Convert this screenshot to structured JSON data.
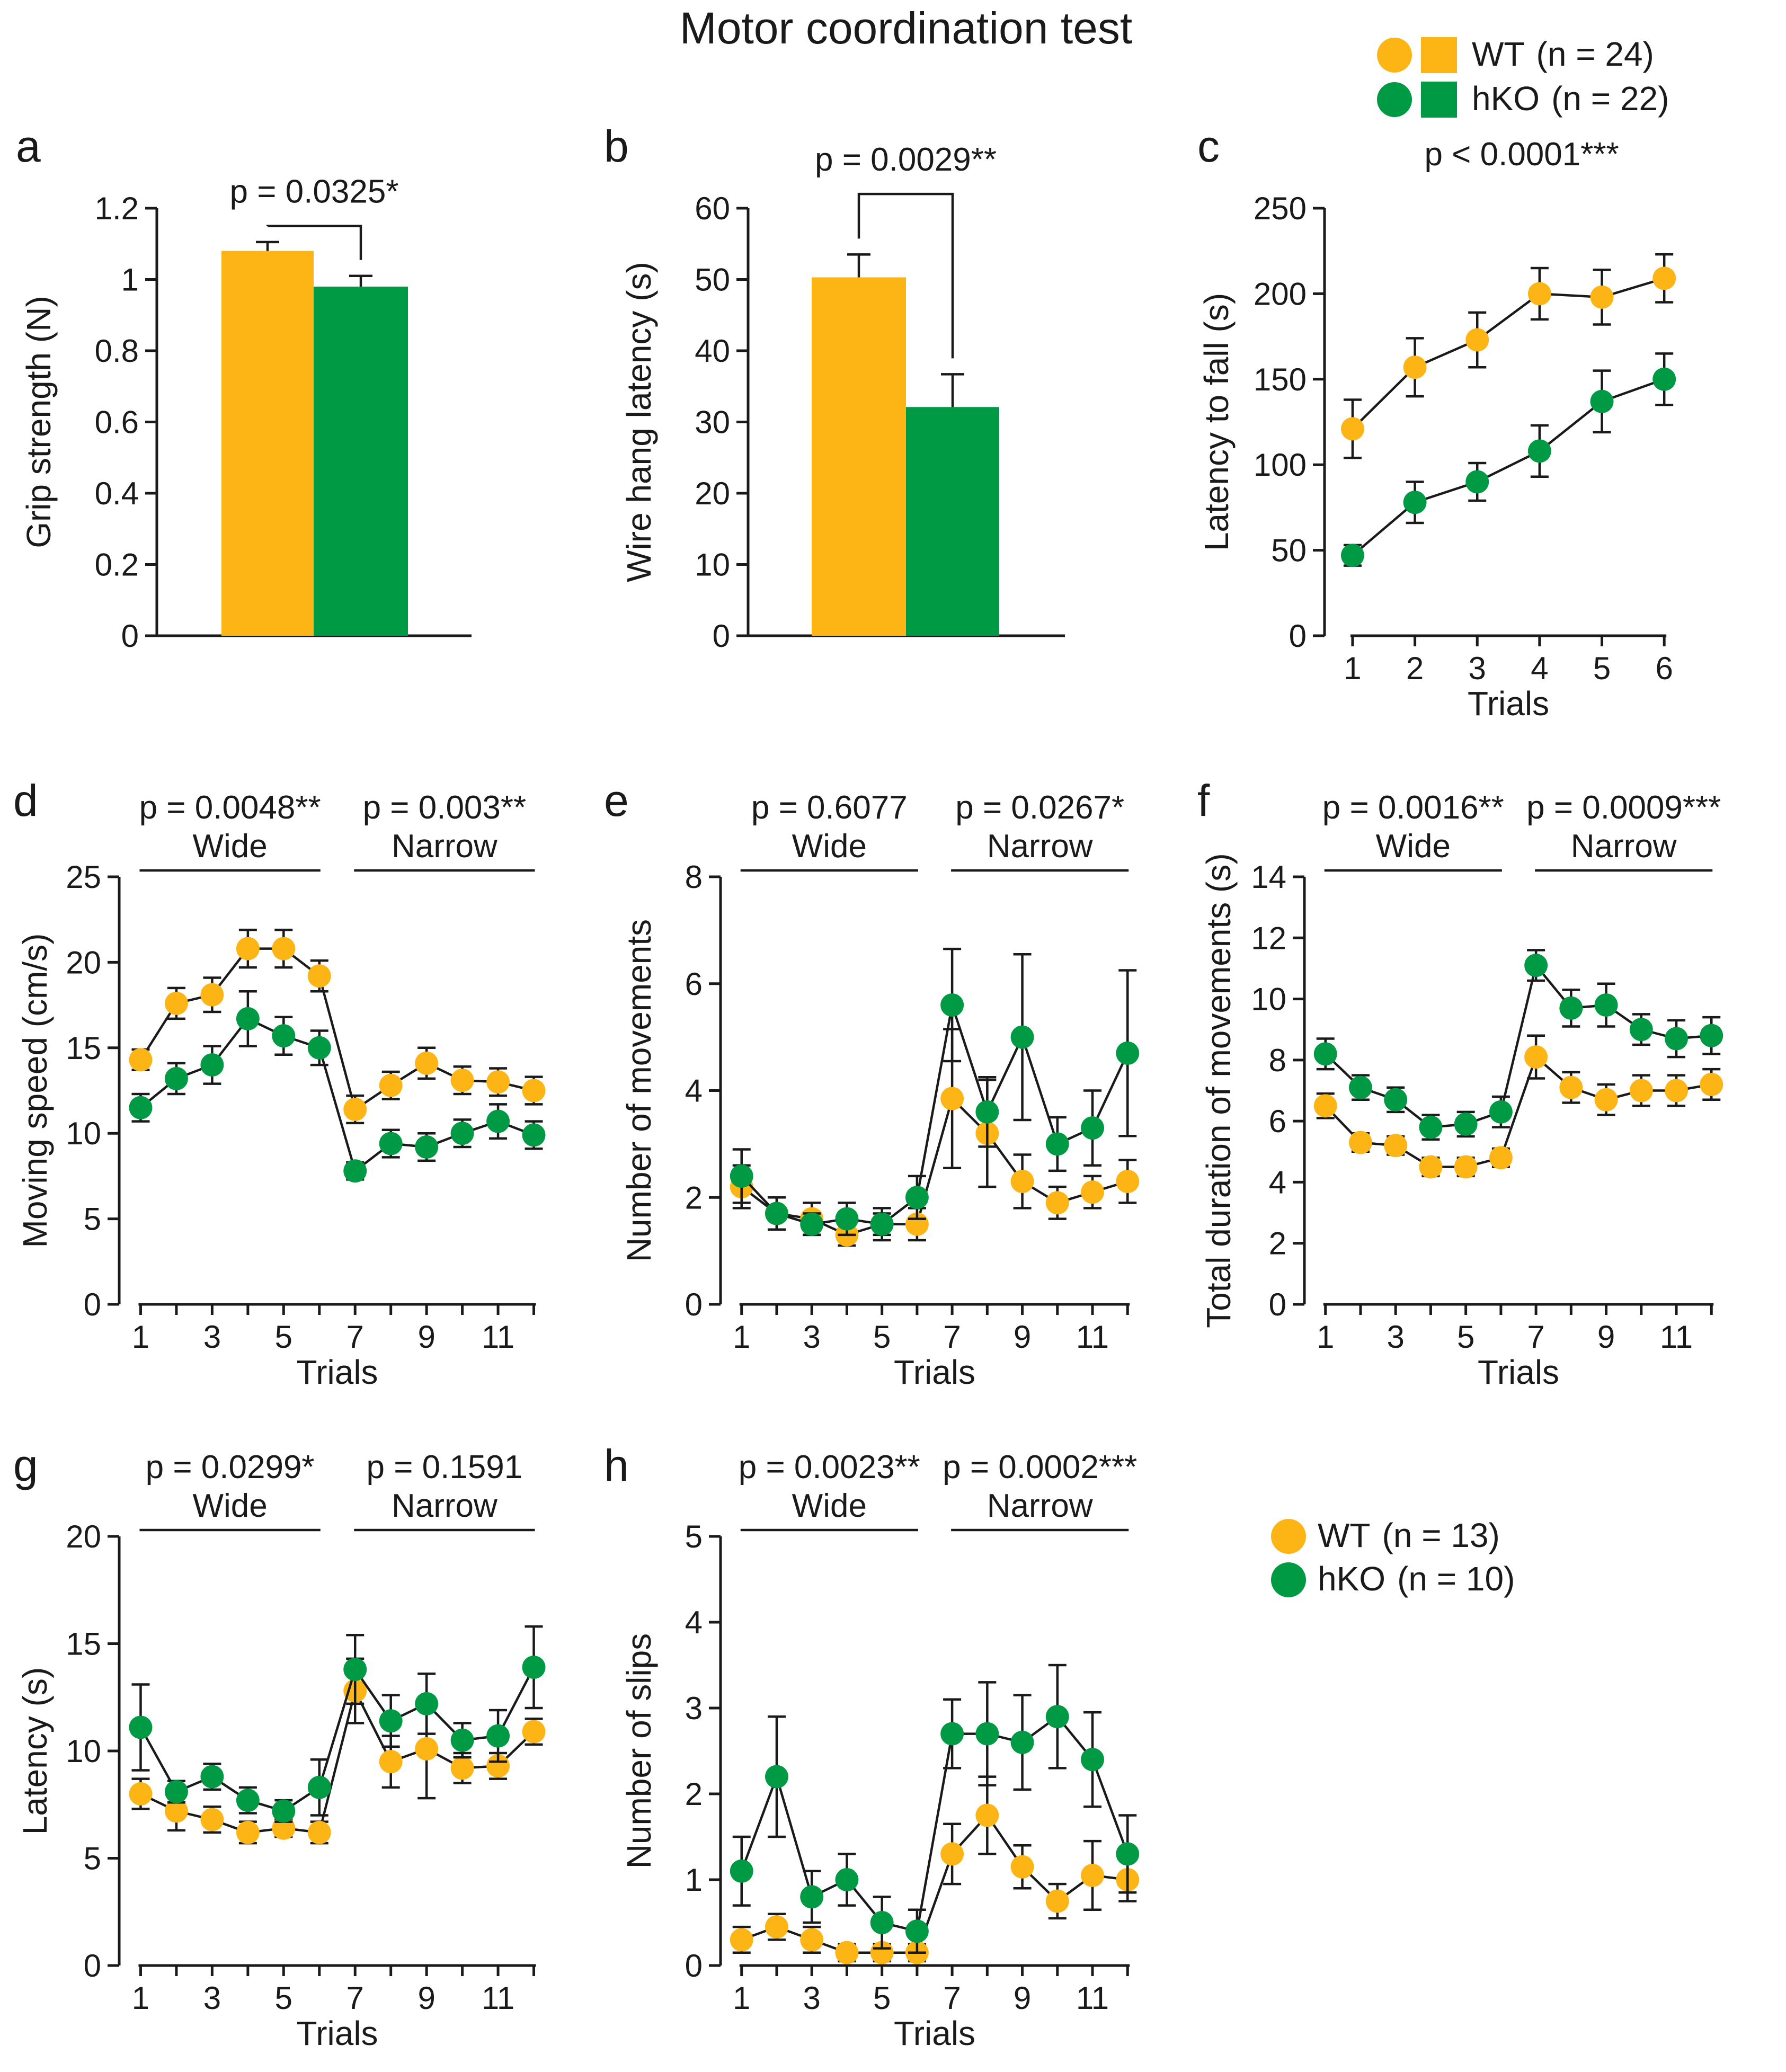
{
  "title": "Motor coordination test",
  "colors": {
    "wt": "#FDB515",
    "hko": "#009A44",
    "ink": "#1a1a1a"
  },
  "legend_top": [
    {
      "series": "wt",
      "label": "WT",
      "n_text": "(n = 24)"
    },
    {
      "series": "hko",
      "label": "hKO",
      "n_text": "(n = 22)"
    }
  ],
  "legend_bottom": [
    {
      "series": "wt",
      "label": "WT",
      "n_text": "(n = 13)"
    },
    {
      "series": "hko",
      "label": "hKO",
      "n_text": "(n = 10)"
    }
  ],
  "chart_data": [
    {
      "id": "a",
      "letter": "a",
      "type": "bar",
      "ylabel": "Grip strength (N)",
      "xlabel": "",
      "ylim": [
        0,
        1.2
      ],
      "yticks": [
        0,
        0.2,
        0.4,
        0.6,
        0.8,
        1,
        1.2
      ],
      "ytick_labels": [
        "0",
        "0.2",
        "0.4",
        "0.6",
        "0.8",
        "1",
        "1.2"
      ],
      "bars": [
        {
          "series": "wt",
          "value": 1.08,
          "err": 0.025
        },
        {
          "series": "hko",
          "value": 0.98,
          "err": 0.03
        }
      ],
      "bracket_top": 1.15,
      "pvalue": "p = 0.0325*"
    },
    {
      "id": "b",
      "letter": "b",
      "type": "bar",
      "ylabel": "Wire hang latency (s)",
      "xlabel": "",
      "ylim": [
        0,
        60
      ],
      "yticks": [
        0,
        10,
        20,
        30,
        40,
        50,
        60
      ],
      "ytick_labels": [
        "0",
        "10",
        "20",
        "30",
        "40",
        "50",
        "60"
      ],
      "bars": [
        {
          "series": "wt",
          "value": 50.3,
          "err": 3.2
        },
        {
          "series": "hko",
          "value": 32.1,
          "err": 4.6
        }
      ],
      "bracket_top": 62,
      "pvalue": "p = 0.0029**"
    },
    {
      "id": "c",
      "letter": "c",
      "type": "line",
      "ylabel": "Latency to fall (s)",
      "xlabel": "Trials",
      "ylim": [
        0,
        250
      ],
      "yticks": [
        0,
        50,
        100,
        150,
        200,
        250
      ],
      "ytick_labels": [
        "0",
        "50",
        "100",
        "150",
        "200",
        "250"
      ],
      "xlim": [
        0.55,
        6.5
      ],
      "xticks": [
        1,
        2,
        3,
        4,
        5,
        6
      ],
      "xtick_labels": [
        "1",
        "2",
        "3",
        "4",
        "5",
        "6"
      ],
      "x": [
        1,
        2,
        3,
        4,
        5,
        6
      ],
      "series": [
        {
          "name": "WT",
          "key": "wt",
          "values": [
            121,
            157,
            173,
            200,
            198,
            209
          ],
          "errors": [
            17,
            17,
            16,
            15,
            16,
            14
          ]
        },
        {
          "name": "hKO",
          "key": "hko",
          "values": [
            47,
            78,
            90,
            108,
            137,
            150
          ],
          "errors": [
            6,
            12,
            11,
            15,
            18,
            15
          ]
        }
      ],
      "pvalue": "p < 0.0001***",
      "segments": []
    },
    {
      "id": "d",
      "letter": "d",
      "type": "line",
      "ylabel": "Moving speed (cm/s)",
      "xlabel": "Trials",
      "ylim": [
        0,
        25
      ],
      "yticks": [
        0,
        5,
        10,
        15,
        20,
        25
      ],
      "ytick_labels": [
        "0",
        "5",
        "10",
        "15",
        "20",
        "25"
      ],
      "xlim": [
        0.4,
        12.6
      ],
      "xticks": [
        1,
        3,
        5,
        7,
        9,
        11
      ],
      "xtick_labels": [
        "1",
        "3",
        "5",
        "7",
        "9",
        "11"
      ],
      "x": [
        1,
        2,
        3,
        4,
        5,
        6,
        7,
        8,
        9,
        10,
        11,
        12
      ],
      "series": [
        {
          "name": "WT",
          "key": "wt",
          "values": [
            14.3,
            17.6,
            18.1,
            20.8,
            20.8,
            19.2,
            11.4,
            12.8,
            14.1,
            13.1,
            13.0,
            12.5
          ],
          "errors": [
            0.6,
            0.9,
            1.0,
            1.1,
            1.1,
            0.9,
            0.8,
            0.8,
            0.9,
            0.8,
            0.8,
            0.8
          ]
        },
        {
          "name": "hKO",
          "key": "hko",
          "values": [
            11.5,
            13.2,
            14.0,
            16.7,
            15.7,
            15.0,
            7.8,
            9.4,
            9.2,
            10.0,
            10.7,
            9.9
          ],
          "errors": [
            0.8,
            0.9,
            1.1,
            1.6,
            1.1,
            1.0,
            0.5,
            0.8,
            0.8,
            0.8,
            1.0,
            0.8
          ]
        }
      ],
      "segments": [
        {
          "label": "Wide",
          "pvalue": "p = 0.0048**",
          "from": 1,
          "to": 6
        },
        {
          "label": "Narrow",
          "pvalue": "p = 0.003**",
          "from": 7,
          "to": 12
        }
      ]
    },
    {
      "id": "e",
      "letter": "e",
      "type": "line",
      "ylabel": "Number of movements",
      "xlabel": "Trials",
      "ylim": [
        0,
        8
      ],
      "yticks": [
        0,
        2,
        4,
        6,
        8
      ],
      "ytick_labels": [
        "0",
        "2",
        "4",
        "6",
        "8"
      ],
      "xlim": [
        0.4,
        12.6
      ],
      "xticks": [
        1,
        3,
        5,
        7,
        9,
        11
      ],
      "xtick_labels": [
        "1",
        "3",
        "5",
        "7",
        "9",
        "11"
      ],
      "x": [
        1,
        2,
        3,
        4,
        5,
        6,
        7,
        8,
        9,
        10,
        11,
        12
      ],
      "series": [
        {
          "name": "WT",
          "key": "wt",
          "values": [
            2.2,
            1.7,
            1.6,
            1.3,
            1.5,
            1.5,
            3.85,
            3.2,
            2.3,
            1.9,
            2.1,
            2.3
          ],
          "errors": [
            0.4,
            0.3,
            0.3,
            0.2,
            0.3,
            0.3,
            1.3,
            1.0,
            0.5,
            0.3,
            0.3,
            0.4
          ]
        },
        {
          "name": "hKO",
          "key": "hko",
          "values": [
            2.4,
            1.7,
            1.5,
            1.6,
            1.5,
            2.0,
            5.6,
            3.6,
            5.0,
            3.0,
            3.3,
            4.7
          ],
          "errors": [
            0.5,
            0.3,
            0.2,
            0.3,
            0.2,
            0.4,
            1.05,
            0.65,
            1.55,
            0.5,
            0.7,
            1.55
          ]
        }
      ],
      "segments": [
        {
          "label": "Wide",
          "pvalue": "p = 0.6077",
          "from": 1,
          "to": 6
        },
        {
          "label": "Narrow",
          "pvalue": "p = 0.0267*",
          "from": 7,
          "to": 12
        }
      ]
    },
    {
      "id": "f",
      "letter": "f",
      "type": "line",
      "ylabel": "Total duration of movements (s)",
      "xlabel": "Trials",
      "ylim": [
        0,
        14
      ],
      "yticks": [
        0,
        2,
        4,
        6,
        8,
        10,
        12,
        14
      ],
      "ytick_labels": [
        "0",
        "2",
        "4",
        "6",
        "8",
        "10",
        "12",
        "14"
      ],
      "xlim": [
        0.4,
        12.6
      ],
      "xticks": [
        1,
        3,
        5,
        7,
        9,
        11
      ],
      "xtick_labels": [
        "1",
        "3",
        "5",
        "7",
        "9",
        "11"
      ],
      "x": [
        1,
        2,
        3,
        4,
        5,
        6,
        7,
        8,
        9,
        10,
        11,
        12
      ],
      "series": [
        {
          "name": "WT",
          "key": "wt",
          "values": [
            6.5,
            5.3,
            5.2,
            4.5,
            4.5,
            4.8,
            8.1,
            7.1,
            6.7,
            7.0,
            7.0,
            7.2
          ],
          "errors": [
            0.4,
            0.3,
            0.3,
            0.3,
            0.3,
            0.3,
            0.7,
            0.5,
            0.5,
            0.5,
            0.5,
            0.5
          ]
        },
        {
          "name": "hKO",
          "key": "hko",
          "values": [
            8.2,
            7.1,
            6.7,
            5.8,
            5.9,
            6.3,
            11.1,
            9.7,
            9.8,
            9.0,
            8.7,
            8.8
          ],
          "errors": [
            0.5,
            0.4,
            0.4,
            0.4,
            0.4,
            0.5,
            0.5,
            0.6,
            0.7,
            0.5,
            0.6,
            0.6
          ]
        }
      ],
      "segments": [
        {
          "label": "Wide",
          "pvalue": "p = 0.0016**",
          "from": 1,
          "to": 6
        },
        {
          "label": "Narrow",
          "pvalue": "p = 0.0009***",
          "from": 7,
          "to": 12
        }
      ]
    },
    {
      "id": "g",
      "letter": "g",
      "type": "line",
      "ylabel": "Latency (s)",
      "xlabel": "Trials",
      "ylim": [
        0,
        20
      ],
      "yticks": [
        0,
        5,
        10,
        15,
        20
      ],
      "ytick_labels": [
        "0",
        "5",
        "10",
        "15",
        "20"
      ],
      "xlim": [
        0.4,
        12.6
      ],
      "xticks": [
        1,
        3,
        5,
        7,
        9,
        11
      ],
      "xtick_labels": [
        "1",
        "3",
        "5",
        "7",
        "9",
        "11"
      ],
      "x": [
        1,
        2,
        3,
        4,
        5,
        6,
        7,
        8,
        9,
        10,
        11,
        12
      ],
      "series": [
        {
          "name": "WT",
          "key": "wt",
          "values": [
            8.0,
            7.2,
            6.8,
            6.2,
            6.4,
            6.2,
            12.8,
            9.5,
            10.1,
            9.2,
            9.3,
            10.9
          ],
          "errors": [
            0.7,
            0.9,
            0.6,
            0.5,
            0.4,
            0.5,
            1.5,
            1.2,
            2.3,
            0.7,
            0.6,
            0.6
          ]
        },
        {
          "name": "hKO",
          "key": "hko",
          "values": [
            11.1,
            8.1,
            8.8,
            7.7,
            7.2,
            8.3,
            13.8,
            11.4,
            12.2,
            10.5,
            10.7,
            13.9
          ],
          "errors": [
            2.0,
            0.5,
            0.6,
            0.6,
            0.5,
            1.3,
            1.6,
            1.2,
            1.4,
            0.8,
            1.2,
            1.9
          ]
        }
      ],
      "segments": [
        {
          "label": "Wide",
          "pvalue": "p = 0.0299*",
          "from": 1,
          "to": 6
        },
        {
          "label": "Narrow",
          "pvalue": "p = 0.1591",
          "from": 7,
          "to": 12
        }
      ]
    },
    {
      "id": "h",
      "letter": "h",
      "type": "line",
      "ylabel": "Number of slips",
      "xlabel": "Trials",
      "ylim": [
        0,
        5
      ],
      "yticks": [
        0,
        1,
        2,
        3,
        4,
        5
      ],
      "ytick_labels": [
        "0",
        "1",
        "2",
        "3",
        "4",
        "5"
      ],
      "xlim": [
        0.4,
        12.6
      ],
      "xticks": [
        1,
        3,
        5,
        7,
        9,
        11
      ],
      "xtick_labels": [
        "1",
        "3",
        "5",
        "7",
        "9",
        "11"
      ],
      "x": [
        1,
        2,
        3,
        4,
        5,
        6,
        7,
        8,
        9,
        10,
        11,
        12
      ],
      "series": [
        {
          "name": "WT",
          "key": "wt",
          "values": [
            0.3,
            0.45,
            0.3,
            0.15,
            0.15,
            0.15,
            1.3,
            1.75,
            1.15,
            0.75,
            1.05,
            1.0
          ],
          "errors": [
            0.15,
            0.15,
            0.15,
            0.1,
            0.1,
            0.1,
            0.35,
            0.45,
            0.25,
            0.2,
            0.4,
            0.25
          ]
        },
        {
          "name": "hKO",
          "key": "hko",
          "values": [
            1.1,
            2.2,
            0.8,
            1.0,
            0.5,
            0.4,
            2.7,
            2.7,
            2.6,
            2.9,
            2.4,
            1.3
          ],
          "errors": [
            0.4,
            0.7,
            0.3,
            0.3,
            0.3,
            0.25,
            0.4,
            0.6,
            0.55,
            0.6,
            0.55,
            0.45
          ]
        }
      ],
      "segments": [
        {
          "label": "Wide",
          "pvalue": "p = 0.0023**",
          "from": 1,
          "to": 6
        },
        {
          "label": "Narrow",
          "pvalue": "p = 0.0002***",
          "from": 7,
          "to": 12
        }
      ]
    }
  ]
}
